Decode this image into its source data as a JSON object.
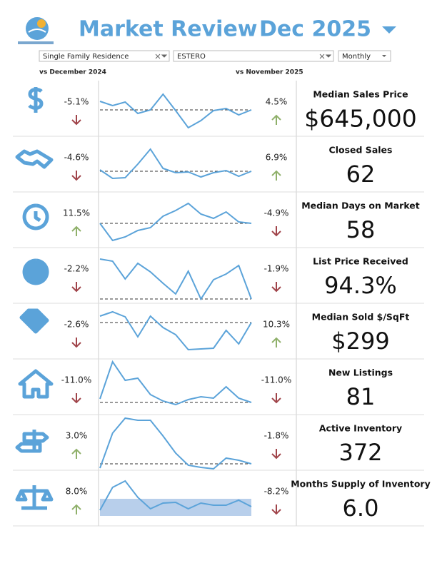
{
  "header": {
    "title": "Market Review",
    "period": "Dec 2025"
  },
  "filters": [
    "Single Family Residence",
    "ESTERO",
    "Monthly"
  ],
  "compare": {
    "left": "vs December 2024",
    "right": "vs November 2025"
  },
  "metrics": [
    {
      "name": "Median Sales Price",
      "value": "$645,000",
      "yoy": "-5.1%",
      "mom": "4.5%",
      "trend": [
        49,
        43,
        48,
        32,
        37,
        59,
        36,
        12,
        22,
        36,
        39,
        30,
        37
      ]
    },
    {
      "name": "Closed Sales",
      "value": "62",
      "yoy": "-4.6%",
      "mom": "6.9%",
      "trend": [
        31,
        19,
        20,
        39,
        60,
        33,
        27,
        28,
        21,
        27,
        30,
        22,
        29
      ]
    },
    {
      "name": "Median Days on Market",
      "value": "58",
      "yoy": "11.5%",
      "mom": "-4.9%",
      "trend": [
        34,
        10,
        15,
        24,
        28,
        44,
        52,
        62,
        47,
        41,
        50,
        36,
        34
      ]
    },
    {
      "name": "List Price Received",
      "value": "94.3%",
      "yoy": "-2.2%",
      "mom": "-1.9%",
      "trend": [
        62,
        59,
        34,
        56,
        44,
        28,
        13,
        45,
        6,
        33,
        41,
        53,
        6
      ]
    },
    {
      "name": "Median Sold $/SqFt",
      "value": "$299",
      "yoy": "-2.6%",
      "mom": "10.3%",
      "trend": [
        60,
        66,
        59,
        31,
        60,
        44,
        34,
        13,
        14,
        15,
        40,
        21,
        51
      ]
    },
    {
      "name": "New Listings",
      "value": "81",
      "yoy": "-11.0%",
      "mom": "-11.0%",
      "trend": [
        22,
        74,
        48,
        51,
        28,
        19,
        14,
        21,
        25,
        23,
        39,
        23,
        17
      ]
    },
    {
      "name": "Active Inventory",
      "value": "372",
      "yoy": "3.0%",
      "mom": "-1.8%",
      "trend": [
        3,
        52,
        73,
        70,
        70,
        48,
        24,
        7,
        4,
        2,
        17,
        14,
        9
      ]
    },
    {
      "name": "Months Supply of Inventory",
      "value": "6.0",
      "yoy": "8.0%",
      "mom": "-8.2%",
      "trend": [
        22,
        54,
        63,
        40,
        24,
        32,
        33,
        24,
        32,
        29,
        29,
        36,
        27
      ]
    }
  ]
}
